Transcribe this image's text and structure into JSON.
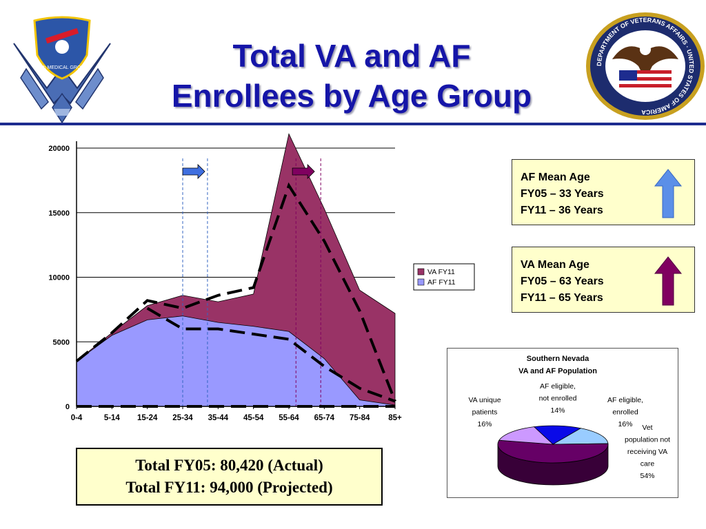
{
  "header": {
    "title_line1": "Total VA and AF",
    "title_line2": "Enrollees by Age Group",
    "af_logo_text": "99th MEDICAL GROUP",
    "va_seal_text": "DEPARTMENT OF VETERANS AFFAIRS · UNITED STATES OF AMERICA"
  },
  "colors": {
    "title": "#1515a8",
    "rule": "#1d2c8f",
    "va_fill": "#993366",
    "af_fill": "#9999ff",
    "info_bg": "#ffffcc",
    "af_arrow": "#5b8fe8",
    "va_arrow": "#800060"
  },
  "chart_data": [
    {
      "type": "area",
      "categories": [
        "0-4",
        "5-14",
        "15-24",
        "25-34",
        "35-44",
        "45-54",
        "55-64",
        "65-74",
        "75-84",
        "85+"
      ],
      "series": [
        {
          "name": "VA FY11",
          "values": [
            3500,
            5700,
            7800,
            8600,
            8100,
            8700,
            21100,
            15300,
            9000,
            7200
          ]
        },
        {
          "name": "AF FY11",
          "values": [
            3500,
            5500,
            6700,
            7000,
            6500,
            6200,
            5800,
            3700,
            500,
            100
          ]
        }
      ],
      "fy05_line": [
        3500,
        5700,
        8200,
        7600,
        8600,
        9200,
        17100,
        12800,
        7400,
        400
      ],
      "fy05_lower_line": [
        7600,
        6000,
        6000,
        5600,
        5200,
        3100,
        1400,
        400
      ],
      "ylim": [
        0,
        20000
      ],
      "yticks": [
        "0",
        "5000",
        "10000",
        "15000",
        "20000"
      ],
      "legend": [
        "VA FY11",
        "AF FY11"
      ],
      "legend_position": "right",
      "grid": true
    },
    {
      "type": "pie",
      "title_line1": "Southern Nevada",
      "title_line2": "VA and AF Population",
      "slices": [
        {
          "label_lines": [
            "AF eligible,",
            "not enrolled",
            "14%"
          ],
          "value": 14,
          "color": "#0a0ae8"
        },
        {
          "label_lines": [
            "AF eligible,",
            "enrolled",
            "16%"
          ],
          "value": 16,
          "color": "#99ccff"
        },
        {
          "label_lines": [
            "Vet",
            "population not",
            "receiving VA",
            "care",
            "54%"
          ],
          "value": 54,
          "color": "#660066"
        },
        {
          "label_lines": [
            "VA unique",
            "patients",
            "16%"
          ],
          "value": 16,
          "color": "#cc99ff"
        }
      ]
    }
  ],
  "af_info": {
    "title": "AF Mean Age",
    "line1": "FY05 – 33 Years",
    "line2": "FY11 – 36 Years"
  },
  "va_info": {
    "title": "VA Mean Age",
    "line1": "FY05 – 63 Years",
    "line2": "FY11 – 65 Years"
  },
  "totals": {
    "line1": "Total FY05: 80,420 (Actual)",
    "line2": "Total FY11: 94,000 (Projected)"
  }
}
